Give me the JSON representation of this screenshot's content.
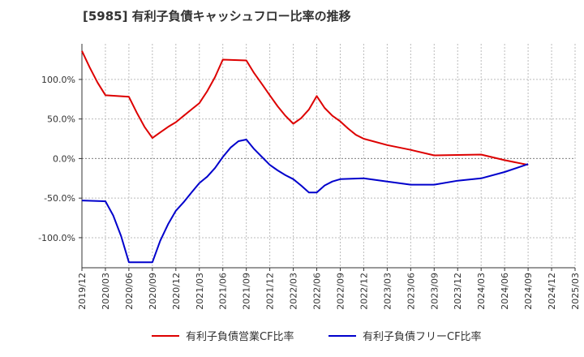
{
  "chart_data": {
    "type": "line",
    "title": "[5985]  有利子負債キャッシュフロー比率の推移",
    "x_ticks": [
      "2019/12",
      "2020/03",
      "2020/06",
      "2020/09",
      "2020/12",
      "2021/03",
      "2021/06",
      "2021/09",
      "2021/12",
      "2022/03",
      "2022/06",
      "2022/09",
      "2022/12",
      "2023/03",
      "2023/06",
      "2023/09",
      "2023/12",
      "2024/03",
      "2024/06",
      "2024/09",
      "2024/12",
      "2025/03"
    ],
    "y_ticks": [
      {
        "value": 100,
        "label": "100.0%"
      },
      {
        "value": 50,
        "label": "50.0%"
      },
      {
        "value": 0,
        "label": "0.0%"
      },
      {
        "value": -50,
        "label": "-50.0%"
      },
      {
        "value": -100,
        "label": "-100.0%"
      }
    ],
    "ylim": [
      -138,
      145
    ],
    "grid": true,
    "legend_position": "bottom",
    "series": [
      {
        "name": "有利子負債営業CF比率",
        "color": "#dd0000",
        "points": [
          [
            "2019/12",
            136
          ],
          [
            "2020/01",
            115
          ],
          [
            "2020/02",
            96
          ],
          [
            "2020/03",
            80
          ],
          [
            "2020/06",
            78
          ],
          [
            "2020/07",
            58
          ],
          [
            "2020/08",
            40
          ],
          [
            "2020/09",
            26
          ],
          [
            "2020/10",
            33
          ],
          [
            "2020/11",
            40
          ],
          [
            "2020/12",
            46
          ],
          [
            "2021/01",
            54
          ],
          [
            "2021/02",
            62
          ],
          [
            "2021/03",
            70
          ],
          [
            "2021/04",
            85
          ],
          [
            "2021/05",
            103
          ],
          [
            "2021/06",
            125
          ],
          [
            "2021/09",
            124
          ],
          [
            "2021/10",
            108
          ],
          [
            "2021/11",
            94
          ],
          [
            "2021/12",
            80
          ],
          [
            "2022/01",
            66
          ],
          [
            "2022/02",
            54
          ],
          [
            "2022/03",
            44
          ],
          [
            "2022/04",
            51
          ],
          [
            "2022/05",
            62
          ],
          [
            "2022/06",
            79
          ],
          [
            "2022/07",
            64
          ],
          [
            "2022/08",
            54
          ],
          [
            "2022/09",
            47
          ],
          [
            "2022/10",
            38
          ],
          [
            "2022/11",
            30
          ],
          [
            "2022/12",
            25
          ],
          [
            "2023/03",
            17
          ],
          [
            "2023/06",
            11
          ],
          [
            "2023/09",
            4
          ],
          [
            "2023/12",
            4.5
          ],
          [
            "2024/03",
            5
          ],
          [
            "2024/06",
            -2
          ],
          [
            "2024/09",
            -8
          ]
        ]
      },
      {
        "name": "有利子負債フリーCF比率",
        "color": "#0000cc",
        "points": [
          [
            "2019/12",
            -53
          ],
          [
            "2020/03",
            -54
          ],
          [
            "2020/04",
            -72
          ],
          [
            "2020/05",
            -98
          ],
          [
            "2020/06",
            -131
          ],
          [
            "2020/09",
            -131
          ],
          [
            "2020/10",
            -104
          ],
          [
            "2020/11",
            -83
          ],
          [
            "2020/12",
            -66
          ],
          [
            "2021/01",
            -55
          ],
          [
            "2021/02",
            -43
          ],
          [
            "2021/03",
            -31
          ],
          [
            "2021/04",
            -23
          ],
          [
            "2021/05",
            -12
          ],
          [
            "2021/06",
            2
          ],
          [
            "2021/07",
            14
          ],
          [
            "2021/08",
            22
          ],
          [
            "2021/09",
            24
          ],
          [
            "2021/10",
            12
          ],
          [
            "2021/11",
            2
          ],
          [
            "2021/12",
            -8
          ],
          [
            "2022/01",
            -15
          ],
          [
            "2022/02",
            -21
          ],
          [
            "2022/03",
            -26
          ],
          [
            "2022/04",
            -34
          ],
          [
            "2022/05",
            -43
          ],
          [
            "2022/06",
            -43
          ],
          [
            "2022/07",
            -34
          ],
          [
            "2022/08",
            -29
          ],
          [
            "2022/09",
            -26
          ],
          [
            "2022/12",
            -25
          ],
          [
            "2023/03",
            -29
          ],
          [
            "2023/06",
            -33
          ],
          [
            "2023/09",
            -33
          ],
          [
            "2023/12",
            -28
          ],
          [
            "2024/03",
            -25
          ],
          [
            "2024/06",
            -17
          ],
          [
            "2024/09",
            -7
          ]
        ]
      }
    ]
  }
}
